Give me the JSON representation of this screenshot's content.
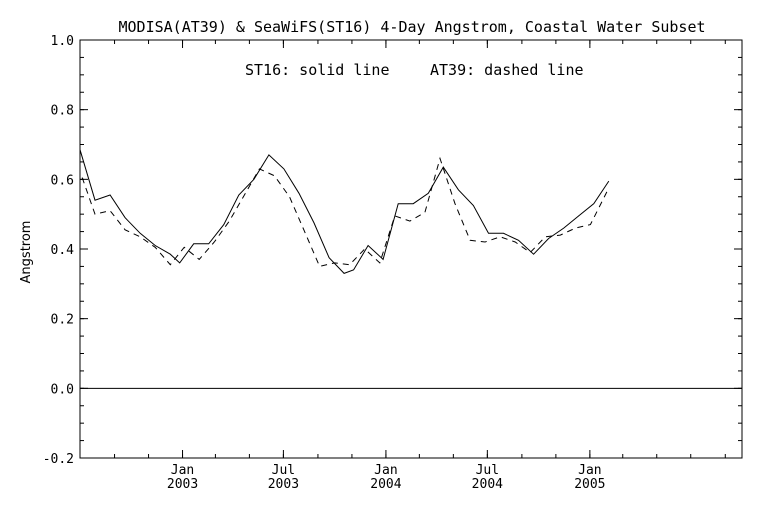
{
  "chart_data": {
    "type": "line",
    "title": "MODISA(AT39) & SeaWiFS(ST16) 4-Day Angstrom, Coastal Water Subset",
    "annotation_left": "ST16: solid line",
    "annotation_right": "AT39: dashed line",
    "xlabel": "",
    "ylabel": "Angstrom",
    "xlim": [
      "2002-07-01",
      "2005-10-01"
    ],
    "ylim": [
      -0.2,
      1.0
    ],
    "yticks": [
      -0.2,
      0.0,
      0.2,
      0.4,
      0.6,
      0.8,
      1.0
    ],
    "ytick_labels": [
      "-0.2",
      "0.0",
      "0.2",
      "0.4",
      "0.6",
      "0.8",
      "1.0"
    ],
    "xticks": [
      {
        "date": "2003-01-01",
        "month": "Jan",
        "year": "2003"
      },
      {
        "date": "2003-07-01",
        "month": "Jul",
        "year": "2003"
      },
      {
        "date": "2004-01-01",
        "month": "Jan",
        "year": "2004"
      },
      {
        "date": "2004-07-01",
        "month": "Jul",
        "year": "2004"
      },
      {
        "date": "2005-01-01",
        "month": "Jan",
        "year": "2005"
      }
    ],
    "reference_line": 0.0,
    "grid": false,
    "series": [
      {
        "name": "ST16",
        "style": "solid",
        "color": "#000000",
        "points": [
          [
            "2002-07-01",
            0.685
          ],
          [
            "2002-07-28",
            0.54
          ],
          [
            "2002-08-24",
            0.555
          ],
          [
            "2002-09-20",
            0.49
          ],
          [
            "2002-10-17",
            0.445
          ],
          [
            "2002-11-13",
            0.41
          ],
          [
            "2002-12-10",
            0.385
          ],
          [
            "2002-12-27",
            0.36
          ],
          [
            "2003-01-21",
            0.415
          ],
          [
            "2003-02-17",
            0.415
          ],
          [
            "2003-03-16",
            0.47
          ],
          [
            "2003-04-12",
            0.555
          ],
          [
            "2003-05-09",
            0.6
          ],
          [
            "2003-06-05",
            0.67
          ],
          [
            "2003-07-02",
            0.63
          ],
          [
            "2003-07-29",
            0.56
          ],
          [
            "2003-08-25",
            0.475
          ],
          [
            "2003-09-21",
            0.375
          ],
          [
            "2003-10-18",
            0.33
          ],
          [
            "2003-11-04",
            0.34
          ],
          [
            "2003-11-30",
            0.41
          ],
          [
            "2003-12-27",
            0.37
          ],
          [
            "2004-01-23",
            0.53
          ],
          [
            "2004-02-19",
            0.53
          ],
          [
            "2004-03-17",
            0.56
          ],
          [
            "2004-04-13",
            0.635
          ],
          [
            "2004-05-10",
            0.57
          ],
          [
            "2004-06-06",
            0.525
          ],
          [
            "2004-07-03",
            0.445
          ],
          [
            "2004-07-30",
            0.445
          ],
          [
            "2004-08-26",
            0.425
          ],
          [
            "2004-09-22",
            0.385
          ],
          [
            "2004-10-19",
            0.43
          ],
          [
            "2004-11-15",
            0.46
          ],
          [
            "2004-12-12",
            0.495
          ],
          [
            "2005-01-08",
            0.53
          ],
          [
            "2005-02-04",
            0.595
          ]
        ]
      },
      {
        "name": "AT39",
        "style": "dashed",
        "color": "#000000",
        "points": [
          [
            "2002-07-05",
            0.605
          ],
          [
            "2002-07-28",
            0.5
          ],
          [
            "2002-08-24",
            0.51
          ],
          [
            "2002-09-20",
            0.455
          ],
          [
            "2002-10-17",
            0.435
          ],
          [
            "2002-11-13",
            0.405
          ],
          [
            "2002-12-10",
            0.355
          ],
          [
            "2003-01-04",
            0.405
          ],
          [
            "2003-01-31",
            0.37
          ],
          [
            "2003-02-27",
            0.42
          ],
          [
            "2003-03-26",
            0.48
          ],
          [
            "2003-04-22",
            0.555
          ],
          [
            "2003-05-19",
            0.63
          ],
          [
            "2003-06-15",
            0.61
          ],
          [
            "2003-07-12",
            0.55
          ],
          [
            "2003-08-08",
            0.45
          ],
          [
            "2003-09-04",
            0.35
          ],
          [
            "2003-10-01",
            0.36
          ],
          [
            "2003-10-28",
            0.355
          ],
          [
            "2003-11-24",
            0.4
          ],
          [
            "2003-12-21",
            0.36
          ],
          [
            "2004-01-17",
            0.495
          ],
          [
            "2004-02-13",
            0.48
          ],
          [
            "2004-03-11",
            0.505
          ],
          [
            "2004-04-07",
            0.66
          ],
          [
            "2004-05-04",
            0.53
          ],
          [
            "2004-05-31",
            0.425
          ],
          [
            "2004-06-27",
            0.42
          ],
          [
            "2004-07-24",
            0.435
          ],
          [
            "2004-08-20",
            0.42
          ],
          [
            "2004-09-16",
            0.39
          ],
          [
            "2004-10-13",
            0.435
          ],
          [
            "2004-11-09",
            0.44
          ],
          [
            "2004-12-06",
            0.46
          ],
          [
            "2005-01-02",
            0.47
          ],
          [
            "2005-02-04",
            0.575
          ]
        ]
      }
    ]
  }
}
